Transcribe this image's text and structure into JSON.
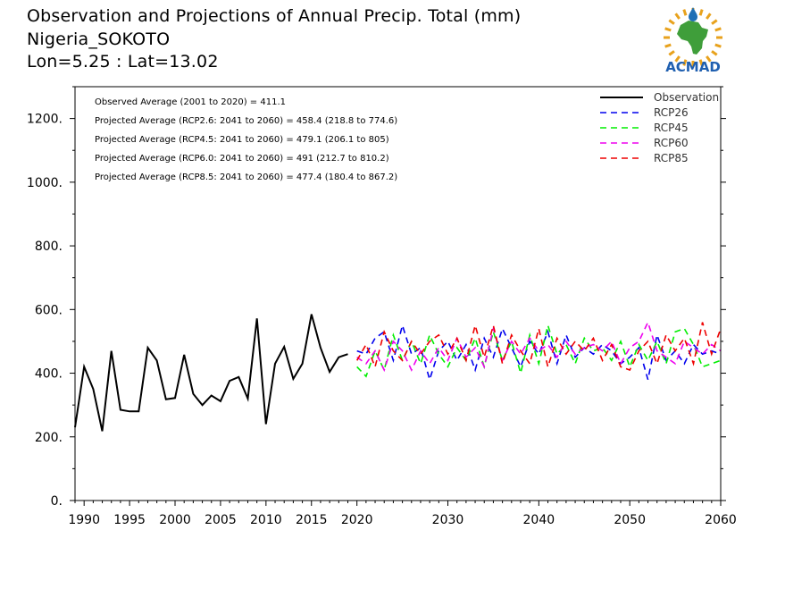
{
  "header": {
    "title": "Observation and Projections of Annual Precip. Total (mm)",
    "location": "Nigeria_SOKOTO",
    "coords": "Lon=5.25 : Lat=13.02"
  },
  "logo": {
    "text": "ACMAD",
    "colors": {
      "africa": "#3f9e3a",
      "rays": "#e8a21d",
      "drop": "#1f6fb5",
      "text": "#1f5fb0"
    }
  },
  "chart_data": {
    "type": "line",
    "xlim": [
      1989,
      2060
    ],
    "ylim": [
      0,
      1300
    ],
    "x_ticks": [
      1990,
      1995,
      2000,
      2005,
      2010,
      2015,
      2020,
      2030,
      2040,
      2050,
      2060
    ],
    "y_ticks": [
      0,
      200,
      400,
      600,
      800,
      1000,
      1200
    ],
    "y_tick_labels": [
      "0.",
      "200.",
      "400.",
      "600.",
      "800.",
      "1000.",
      "1200."
    ],
    "grid": false,
    "legend_position": "top-right",
    "annotations": [
      "Observed Average (2001 to 2020) = 411.1",
      "Projected Average (RCP2.6: 2041 to 2060) = 458.4 (218.8 to 774.6)",
      "Projected Average (RCP4.5: 2041 to 2060) = 479.1 (206.1 to 805)",
      "Projected Average (RCP6.0: 2041 to 2060) = 491 (212.7 to 810.2)",
      "Projected Average (RCP8.5: 2041 to 2060) = 477.4 (180.4 to 867.2)"
    ],
    "series": [
      {
        "name": "Observation",
        "color": "#000000",
        "dash": false,
        "x": [
          1989,
          1990,
          1991,
          1992,
          1993,
          1994,
          1995,
          1996,
          1997,
          1998,
          1999,
          2000,
          2001,
          2002,
          2003,
          2004,
          2005,
          2006,
          2007,
          2008,
          2009,
          2010,
          2011,
          2012,
          2013,
          2014,
          2015,
          2016,
          2017,
          2018,
          2019
        ],
        "y": [
          230,
          420,
          350,
          218,
          470,
          285,
          280,
          280,
          480,
          440,
          318,
          322,
          458,
          335,
          300,
          330,
          312,
          376,
          388,
          320,
          572,
          240,
          430,
          483,
          382,
          430,
          585,
          480,
          404,
          450,
          460
        ]
      },
      {
        "name": "RCP26",
        "color": "#0000ee",
        "dash": true,
        "x": [
          2020,
          2021,
          2022,
          2023,
          2024,
          2025,
          2026,
          2027,
          2028,
          2029,
          2030,
          2031,
          2032,
          2033,
          2034,
          2035,
          2036,
          2037,
          2038,
          2039,
          2040,
          2041,
          2042,
          2043,
          2044,
          2045,
          2046,
          2047,
          2048,
          2049,
          2050,
          2051,
          2052,
          2053,
          2054,
          2055,
          2056,
          2057,
          2058,
          2059,
          2060
        ],
        "y": [
          470,
          460,
          510,
          530,
          440,
          550,
          460,
          480,
          380,
          470,
          500,
          440,
          490,
          410,
          510,
          450,
          540,
          480,
          420,
          500,
          460,
          530,
          430,
          520,
          450,
          480,
          460,
          490,
          470,
          430,
          450,
          480,
          380,
          520,
          440,
          470,
          430,
          490,
          460,
          470,
          460
        ]
      },
      {
        "name": "RCP45",
        "color": "#00ee00",
        "dash": true,
        "x": [
          2020,
          2021,
          2022,
          2023,
          2024,
          2025,
          2026,
          2027,
          2028,
          2029,
          2030,
          2031,
          2032,
          2033,
          2034,
          2035,
          2036,
          2037,
          2038,
          2039,
          2040,
          2041,
          2042,
          2043,
          2044,
          2045,
          2046,
          2047,
          2048,
          2049,
          2050,
          2051,
          2052,
          2053,
          2054,
          2055,
          2056,
          2057,
          2058,
          2059,
          2060
        ],
        "y": [
          420,
          390,
          470,
          410,
          520,
          440,
          500,
          430,
          520,
          460,
          420,
          480,
          440,
          510,
          420,
          530,
          440,
          500,
          400,
          520,
          430,
          550,
          460,
          490,
          430,
          510,
          470,
          480,
          440,
          500,
          420,
          490,
          440,
          500,
          430,
          530,
          540,
          490,
          420,
          430,
          440
        ]
      },
      {
        "name": "RCP60",
        "color": "#ee00ee",
        "dash": true,
        "x": [
          2020,
          2021,
          2022,
          2023,
          2024,
          2025,
          2026,
          2027,
          2028,
          2029,
          2030,
          2031,
          2032,
          2033,
          2034,
          2035,
          2036,
          2037,
          2038,
          2039,
          2040,
          2041,
          2042,
          2043,
          2044,
          2045,
          2046,
          2047,
          2048,
          2049,
          2050,
          2051,
          2052,
          2053,
          2054,
          2055,
          2056,
          2057,
          2058,
          2059,
          2060
        ],
        "y": [
          450,
          430,
          470,
          410,
          500,
          470,
          410,
          470,
          430,
          480,
          440,
          510,
          450,
          480,
          420,
          540,
          440,
          500,
          460,
          510,
          470,
          490,
          450,
          500,
          460,
          480,
          490,
          470,
          500,
          430,
          480,
          500,
          560,
          470,
          450,
          430,
          500,
          480,
          460,
          490,
          470
        ]
      },
      {
        "name": "RCP85",
        "color": "#ee0000",
        "dash": true,
        "x": [
          2020,
          2021,
          2022,
          2023,
          2024,
          2025,
          2026,
          2027,
          2028,
          2029,
          2030,
          2031,
          2032,
          2033,
          2034,
          2035,
          2036,
          2037,
          2038,
          2039,
          2040,
          2041,
          2042,
          2043,
          2044,
          2045,
          2046,
          2047,
          2048,
          2049,
          2050,
          2051,
          2052,
          2053,
          2054,
          2055,
          2056,
          2057,
          2058,
          2059,
          2060
        ],
        "y": [
          440,
          490,
          420,
          530,
          470,
          440,
          500,
          460,
          500,
          520,
          460,
          510,
          440,
          550,
          450,
          550,
          430,
          520,
          470,
          430,
          540,
          420,
          510,
          460,
          500,
          470,
          510,
          440,
          490,
          420,
          410,
          470,
          500,
          430,
          520,
          470,
          510,
          430,
          560,
          460,
          540
        ]
      }
    ]
  }
}
